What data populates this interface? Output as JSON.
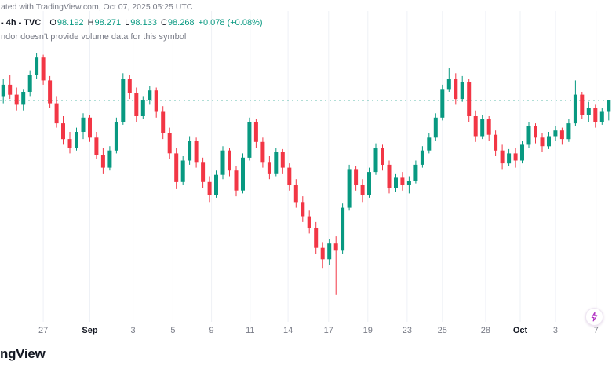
{
  "header": {
    "attribution": "ated with TradingView.com, Oct 07, 2025 05:25 UTC",
    "legend": {
      "symbol": "- 4h - TVC",
      "o_label": "O",
      "o_value": "98.192",
      "h_label": "H",
      "h_value": "98.271",
      "l_label": "L",
      "l_value": "98.133",
      "c_label": "C",
      "c_value": "98.268",
      "change": "+0.078 (+0.08%)"
    },
    "volume_notice": "ndor doesn't provide volume data for this symbol"
  },
  "footer": {
    "logo_text": "ngView"
  },
  "icons": {
    "boost": "lightning-bolt"
  },
  "colors": {
    "up": "#089981",
    "down": "#f23645",
    "grid": "#eef1f6",
    "axis_text": "#787b86",
    "text_dark": "#131722",
    "price_line": "#089981",
    "accent_purple": "#b02fc2"
  },
  "chart_data": {
    "type": "candlestick",
    "title": "",
    "timeframe": "4h",
    "exchange": "TVC",
    "ohlc_header": {
      "open": 98.192,
      "high": 98.271,
      "low": 98.133,
      "close": 98.268,
      "change": 0.078,
      "change_pct": 0.08
    },
    "ylim": [
      96.75,
      98.67
    ],
    "last_close": 98.27,
    "grid": "vertical-only",
    "x_ticks": [
      {
        "label": "27",
        "i": 6.5
      },
      {
        "label": "Sep",
        "i": 13.5,
        "major": true
      },
      {
        "label": "3",
        "i": 20
      },
      {
        "label": "5",
        "i": 26
      },
      {
        "label": "9",
        "i": 31.8
      },
      {
        "label": "11",
        "i": 37.6
      },
      {
        "label": "14",
        "i": 43.3
      },
      {
        "label": "17",
        "i": 49.4
      },
      {
        "label": "19",
        "i": 55.3
      },
      {
        "label": "23",
        "i": 61.2
      },
      {
        "label": "25",
        "i": 66.5
      },
      {
        "label": "28",
        "i": 73
      },
      {
        "label": "Oct",
        "i": 78.2,
        "major": true
      },
      {
        "label": "3",
        "i": 83.5
      },
      {
        "label": "7",
        "i": 89.6
      }
    ],
    "candles": [
      [
        98.3,
        98.42,
        98.25,
        98.38
      ],
      [
        98.38,
        98.45,
        98.28,
        98.31
      ],
      [
        98.31,
        98.36,
        98.2,
        98.24
      ],
      [
        98.24,
        98.35,
        98.2,
        98.33
      ],
      [
        98.33,
        98.48,
        98.3,
        98.45
      ],
      [
        98.45,
        98.6,
        98.42,
        98.57
      ],
      [
        98.57,
        98.59,
        98.38,
        98.41
      ],
      [
        98.41,
        98.44,
        98.22,
        98.25
      ],
      [
        98.25,
        98.3,
        98.08,
        98.11
      ],
      [
        98.11,
        98.16,
        97.96,
        98.0
      ],
      [
        98.0,
        98.05,
        97.9,
        97.94
      ],
      [
        97.94,
        98.08,
        97.92,
        98.05
      ],
      [
        98.05,
        98.18,
        98.0,
        98.15
      ],
      [
        98.15,
        98.17,
        97.98,
        98.01
      ],
      [
        98.01,
        98.05,
        97.86,
        97.89
      ],
      [
        97.89,
        97.94,
        97.76,
        97.8
      ],
      [
        97.8,
        97.95,
        97.78,
        97.92
      ],
      [
        97.92,
        98.15,
        97.9,
        98.12
      ],
      [
        98.12,
        98.46,
        98.1,
        98.42
      ],
      [
        98.42,
        98.45,
        98.28,
        98.32
      ],
      [
        98.32,
        98.36,
        98.12,
        98.16
      ],
      [
        98.16,
        98.3,
        98.14,
        98.27
      ],
      [
        98.27,
        98.37,
        98.24,
        98.34
      ],
      [
        98.34,
        98.36,
        98.15,
        98.19
      ],
      [
        98.19,
        98.23,
        98.0,
        98.04
      ],
      [
        98.04,
        98.08,
        97.86,
        97.9
      ],
      [
        97.9,
        97.94,
        97.65,
        97.7
      ],
      [
        97.7,
        97.88,
        97.68,
        97.85
      ],
      [
        97.85,
        98.02,
        97.82,
        97.99
      ],
      [
        97.99,
        98.01,
        97.8,
        97.84
      ],
      [
        97.84,
        97.87,
        97.66,
        97.7
      ],
      [
        97.7,
        97.74,
        97.56,
        97.61
      ],
      [
        97.61,
        97.78,
        97.59,
        97.75
      ],
      [
        97.75,
        97.95,
        97.72,
        97.92
      ],
      [
        97.92,
        97.94,
        97.74,
        97.78
      ],
      [
        97.78,
        97.81,
        97.6,
        97.64
      ],
      [
        97.64,
        97.9,
        97.62,
        97.87
      ],
      [
        97.87,
        98.15,
        97.85,
        98.12
      ],
      [
        98.12,
        98.14,
        97.94,
        97.98
      ],
      [
        97.98,
        98.01,
        97.8,
        97.84
      ],
      [
        97.84,
        97.88,
        97.72,
        97.76
      ],
      [
        97.76,
        97.94,
        97.74,
        97.91
      ],
      [
        97.91,
        97.93,
        97.76,
        97.8
      ],
      [
        97.8,
        97.83,
        97.64,
        97.68
      ],
      [
        97.68,
        97.72,
        97.52,
        97.56
      ],
      [
        97.56,
        97.6,
        97.42,
        97.46
      ],
      [
        97.46,
        97.5,
        97.34,
        97.38
      ],
      [
        97.38,
        97.42,
        97.2,
        97.24
      ],
      [
        97.24,
        97.28,
        97.1,
        97.16
      ],
      [
        97.16,
        97.3,
        97.12,
        97.27
      ],
      [
        97.27,
        97.32,
        96.91,
        97.22
      ],
      [
        97.22,
        97.55,
        97.2,
        97.52
      ],
      [
        97.52,
        97.82,
        97.5,
        97.79
      ],
      [
        97.79,
        97.81,
        97.64,
        97.68
      ],
      [
        97.68,
        97.72,
        97.56,
        97.61
      ],
      [
        97.61,
        97.8,
        97.59,
        97.77
      ],
      [
        97.77,
        97.97,
        97.75,
        97.94
      ],
      [
        97.94,
        97.96,
        97.78,
        97.82
      ],
      [
        97.82,
        97.85,
        97.62,
        97.66
      ],
      [
        97.66,
        97.76,
        97.63,
        97.73
      ],
      [
        97.73,
        97.77,
        97.64,
        97.68
      ],
      [
        97.68,
        97.74,
        97.62,
        97.71
      ],
      [
        97.71,
        97.85,
        97.69,
        97.82
      ],
      [
        97.82,
        97.95,
        97.8,
        97.92
      ],
      [
        97.92,
        98.04,
        97.9,
        98.01
      ],
      [
        98.01,
        98.18,
        97.99,
        98.15
      ],
      [
        98.15,
        98.38,
        98.13,
        98.35
      ],
      [
        98.35,
        98.5,
        98.33,
        98.42
      ],
      [
        98.42,
        98.46,
        98.24,
        98.28
      ],
      [
        98.28,
        98.44,
        98.26,
        98.4
      ],
      [
        98.4,
        98.42,
        98.12,
        98.16
      ],
      [
        98.16,
        98.2,
        97.98,
        98.02
      ],
      [
        98.02,
        98.17,
        98.0,
        98.14
      ],
      [
        98.14,
        98.16,
        97.99,
        98.03
      ],
      [
        98.03,
        98.06,
        97.88,
        97.92
      ],
      [
        97.92,
        97.96,
        97.79,
        97.83
      ],
      [
        97.83,
        97.93,
        97.81,
        97.9
      ],
      [
        97.9,
        97.94,
        97.8,
        97.85
      ],
      [
        97.85,
        97.99,
        97.83,
        97.96
      ],
      [
        97.96,
        98.12,
        97.94,
        98.09
      ],
      [
        98.09,
        98.11,
        97.97,
        98.01
      ],
      [
        98.01,
        98.04,
        97.91,
        97.95
      ],
      [
        97.95,
        98.05,
        97.93,
        98.02
      ],
      [
        98.02,
        98.09,
        97.99,
        98.06
      ],
      [
        98.06,
        98.08,
        97.96,
        98.0
      ],
      [
        98.0,
        98.14,
        97.98,
        98.11
      ],
      [
        98.11,
        98.41,
        98.09,
        98.31
      ],
      [
        98.31,
        98.33,
        98.14,
        98.17
      ],
      [
        98.17,
        98.26,
        98.12,
        98.22
      ],
      [
        98.22,
        98.24,
        98.08,
        98.12
      ],
      [
        98.12,
        98.22,
        98.1,
        98.19
      ],
      [
        98.19,
        98.27,
        98.13,
        98.27
      ]
    ]
  }
}
